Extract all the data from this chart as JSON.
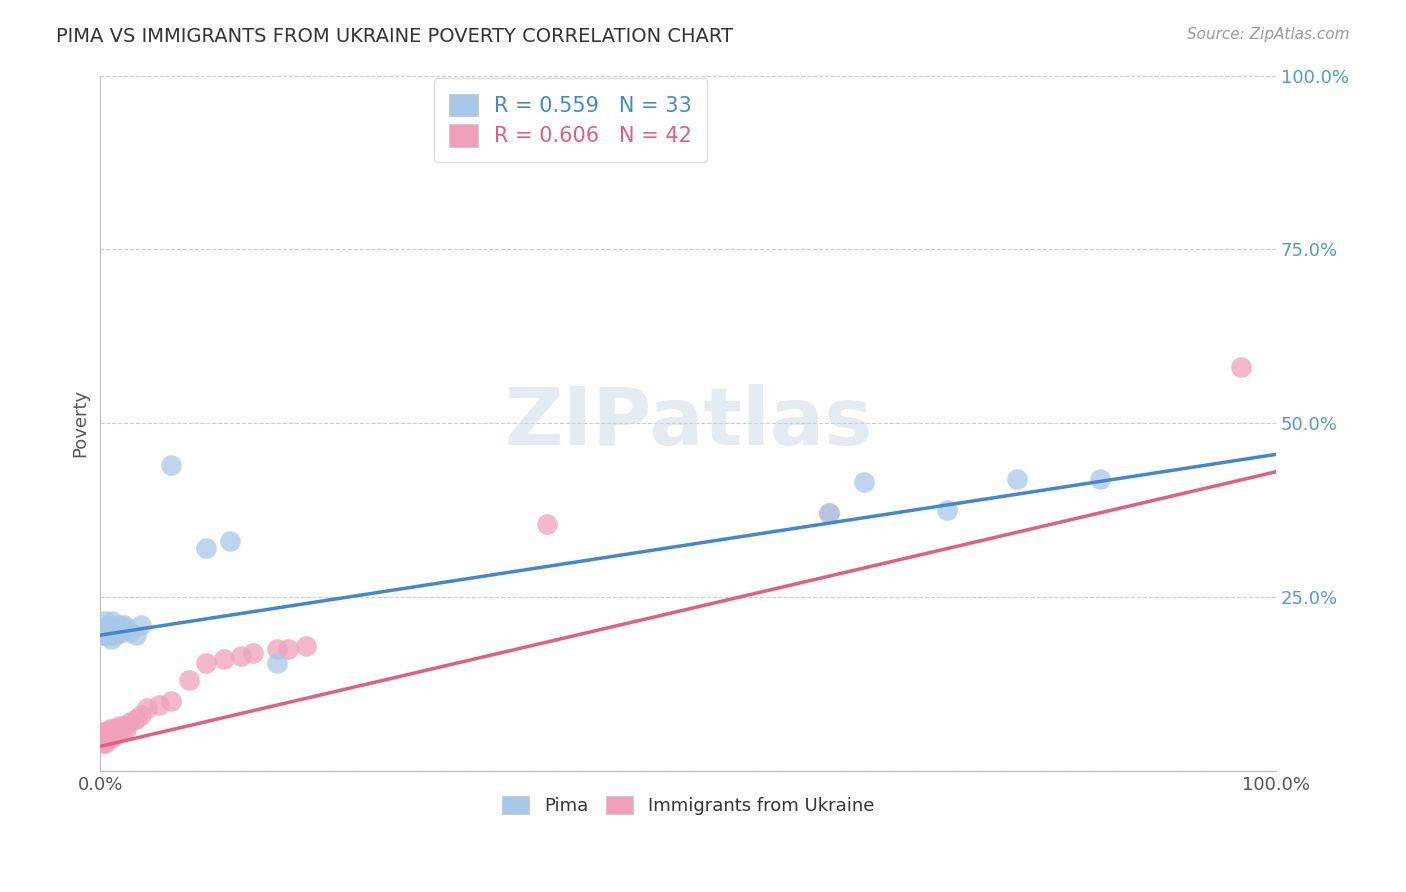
{
  "title": "PIMA VS IMMIGRANTS FROM UKRAINE POVERTY CORRELATION CHART",
  "source": "Source: ZipAtlas.com",
  "ylabel": "Poverty",
  "xlim": [
    0,
    1
  ],
  "ylim": [
    0,
    1
  ],
  "xticks": [
    0.0,
    0.25,
    0.5,
    0.75,
    1.0
  ],
  "xticklabels": [
    "0.0%",
    "",
    "",
    "",
    "100.0%"
  ],
  "yticks": [
    0.0,
    0.25,
    0.5,
    0.75,
    1.0
  ],
  "yticklabels": [
    "",
    "25.0%",
    "50.0%",
    "75.0%",
    "100.0%"
  ],
  "legend_labels": [
    "Pima",
    "Immigrants from Ukraine"
  ],
  "pima_R": "R = 0.559",
  "pima_N": "N = 33",
  "ukraine_R": "R = 0.606",
  "ukraine_N": "N = 42",
  "pima_color": "#a8c8e8",
  "ukraine_color": "#f0a0b8",
  "pima_line_color": "#4488cc",
  "ukraine_line_color": "#e06080",
  "pima_x": [
    0.002,
    0.003,
    0.004,
    0.004,
    0.005,
    0.005,
    0.006,
    0.006,
    0.007,
    0.008,
    0.009,
    0.01,
    0.01,
    0.011,
    0.012,
    0.013,
    0.015,
    0.016,
    0.018,
    0.02,
    0.022,
    0.025,
    0.03,
    0.035,
    0.06,
    0.09,
    0.11,
    0.15,
    0.62,
    0.65,
    0.72,
    0.78,
    0.85
  ],
  "pima_y": [
    0.195,
    0.205,
    0.2,
    0.215,
    0.195,
    0.205,
    0.2,
    0.195,
    0.21,
    0.2,
    0.19,
    0.205,
    0.215,
    0.195,
    0.2,
    0.195,
    0.2,
    0.21,
    0.2,
    0.21,
    0.205,
    0.2,
    0.195,
    0.21,
    0.44,
    0.32,
    0.33,
    0.155,
    0.37,
    0.415,
    0.375,
    0.42,
    0.42
  ],
  "ukraine_x": [
    0.001,
    0.002,
    0.002,
    0.003,
    0.003,
    0.004,
    0.004,
    0.005,
    0.005,
    0.006,
    0.006,
    0.007,
    0.008,
    0.008,
    0.009,
    0.01,
    0.011,
    0.012,
    0.013,
    0.014,
    0.015,
    0.016,
    0.018,
    0.02,
    0.022,
    0.025,
    0.03,
    0.035,
    0.04,
    0.05,
    0.06,
    0.075,
    0.09,
    0.105,
    0.12,
    0.13,
    0.15,
    0.16,
    0.175,
    0.38,
    0.62,
    0.97
  ],
  "ukraine_y": [
    0.045,
    0.04,
    0.05,
    0.045,
    0.055,
    0.04,
    0.05,
    0.045,
    0.055,
    0.045,
    0.055,
    0.05,
    0.045,
    0.06,
    0.05,
    0.055,
    0.06,
    0.05,
    0.055,
    0.06,
    0.055,
    0.065,
    0.06,
    0.065,
    0.06,
    0.07,
    0.075,
    0.08,
    0.09,
    0.095,
    0.1,
    0.13,
    0.155,
    0.16,
    0.165,
    0.17,
    0.175,
    0.175,
    0.18,
    0.355,
    0.37,
    0.58
  ],
  "pima_line_x": [
    0.0,
    1.0
  ],
  "pima_line_y_start": 0.195,
  "pima_line_y_end": 0.455,
  "ukraine_line_x": [
    0.0,
    1.0
  ],
  "ukraine_line_y_start": 0.035,
  "ukraine_line_y_end": 0.43
}
